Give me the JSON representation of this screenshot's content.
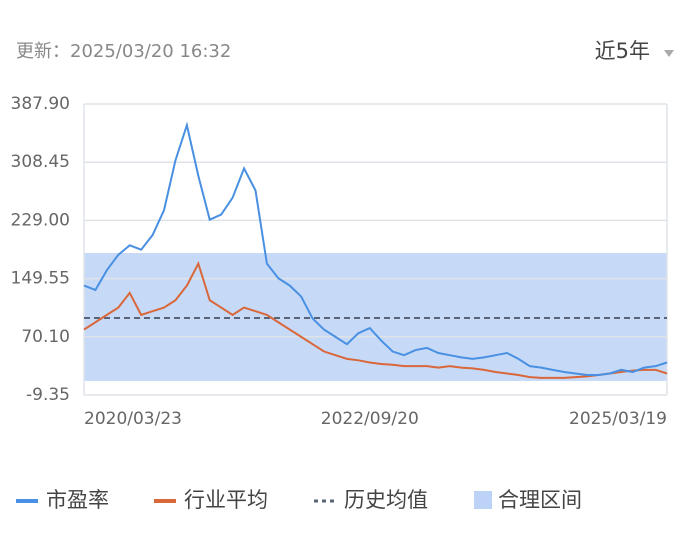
{
  "chart_data": {
    "type": "line",
    "updated": "更新：2025/03/20 16:32",
    "range_selector": "近5年",
    "categories": [
      "2020/03/23",
      null,
      null,
      null,
      null,
      null,
      null,
      null,
      null,
      null,
      null,
      null,
      null,
      null,
      null,
      null,
      null,
      null,
      null,
      null,
      null,
      null,
      null,
      null,
      null,
      "2022/09/20",
      null,
      null,
      null,
      null,
      null,
      null,
      null,
      null,
      null,
      null,
      null,
      null,
      null,
      null,
      null,
      null,
      null,
      null,
      null,
      null,
      null,
      null,
      null,
      null,
      null,
      "2025/03/19"
    ],
    "series": [
      {
        "name": "市盈率",
        "color": "#4a90e2",
        "values": [
          140,
          134,
          161,
          182,
          195,
          189,
          209,
          243,
          311,
          359,
          290,
          230,
          237,
          260,
          300,
          270,
          170,
          150,
          140,
          125,
          95,
          80,
          70,
          60,
          75,
          82,
          65,
          50,
          45,
          52,
          55,
          48,
          45,
          42,
          40,
          42,
          45,
          48,
          40,
          30,
          28,
          25,
          22,
          20,
          18,
          18,
          20,
          25,
          22,
          28,
          30,
          35
        ]
      },
      {
        "name": "行业平均",
        "color": "#d9673a",
        "values": [
          80,
          90,
          100,
          110,
          130,
          100,
          105,
          110,
          120,
          140,
          170,
          120,
          110,
          100,
          110,
          105,
          100,
          90,
          80,
          70,
          60,
          50,
          45,
          40,
          38,
          35,
          33,
          32,
          30,
          30,
          30,
          28,
          30,
          28,
          27,
          25,
          22,
          20,
          18,
          15,
          14,
          14,
          14,
          15,
          16,
          18,
          20,
          22,
          24,
          25,
          25,
          20
        ]
      }
    ],
    "mean": {
      "name": "历史均值",
      "color": "#5a6478",
      "value": 95.8
    },
    "band": {
      "name": "合理区间",
      "color": "#bcd3f7",
      "range": [
        9.8,
        184.5
      ]
    },
    "ylim": [
      -9.35,
      387.9
    ],
    "yticks": [
      -9.35,
      {
        "value": 70.1,
        "label": "70.10"
      },
      149.55,
      {
        "value": 229,
        "label": "229.00"
      },
      308.45,
      {
        "value": 387.9,
        "label": "387.90"
      }
    ],
    "grid": true
  }
}
